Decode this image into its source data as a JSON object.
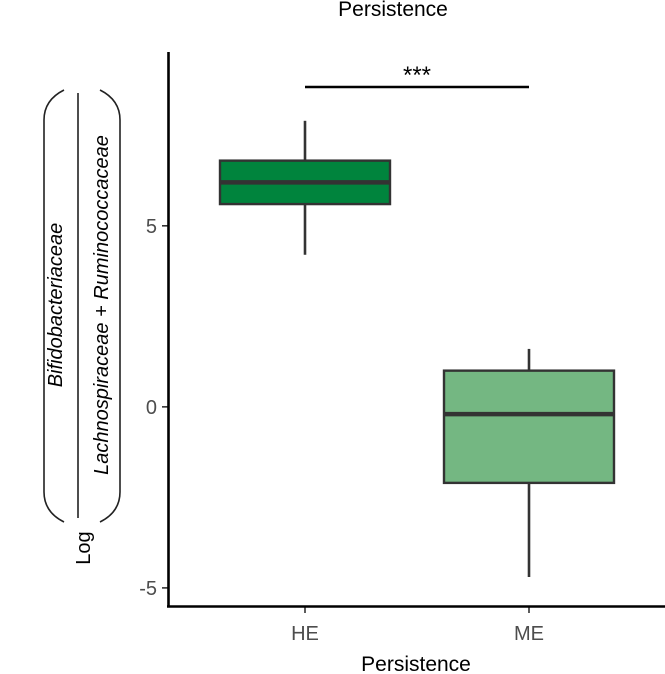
{
  "chart_data": {
    "type": "box",
    "title": "Persistence",
    "xlabel": "Persistence",
    "ylabel": {
      "prefix": "Log",
      "numerator": "Bifidobacteriaceae",
      "denominator": "Lachnospiraceae + Ruminococcaceae"
    },
    "categories": [
      "HE",
      "ME"
    ],
    "boxes": [
      {
        "name": "HE",
        "min": 4.2,
        "q1": 5.6,
        "median": 6.2,
        "q3": 6.8,
        "max": 7.9,
        "color": "#00843d"
      },
      {
        "name": "ME",
        "min": -4.7,
        "q1": -2.1,
        "median": -0.2,
        "q3": 1.0,
        "max": 1.6,
        "color": "#74b782"
      }
    ],
    "yticks": [
      -5,
      0,
      5
    ],
    "ylim": [
      -5.5,
      9.8
    ],
    "significance": {
      "label": "***",
      "between": [
        "HE",
        "ME"
      ]
    },
    "grid": false
  }
}
